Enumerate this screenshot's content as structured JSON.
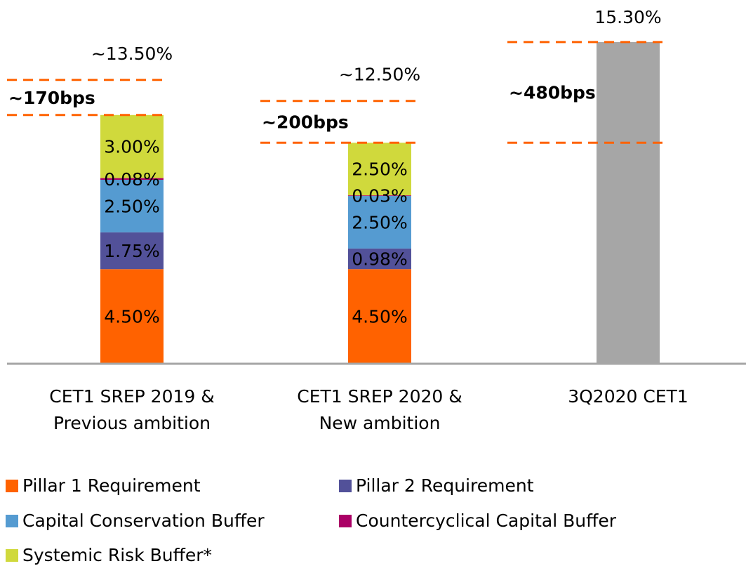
{
  "chart_data": {
    "type": "stacked_bar",
    "categories": [
      [
        "CET1 SREP 2019 &",
        "Previous ambition"
      ],
      [
        "CET1 SREP 2020 &",
        "New ambition"
      ],
      [
        "3Q2020 CET1"
      ]
    ],
    "ylim": [
      0,
      17.3
    ],
    "series": [
      {
        "name": "Pillar 1 Requirement",
        "color": "#ff6200",
        "values": [
          4.5,
          4.5,
          null
        ],
        "value_labels": [
          "4.50%",
          "4.50%",
          null
        ]
      },
      {
        "name": "Pillar 2 Requirement",
        "color": "#525199",
        "values": [
          1.75,
          0.98,
          null
        ],
        "value_labels": [
          "1.75%",
          "0.98%",
          null
        ]
      },
      {
        "name": "Capital Conservation Buffer",
        "color": "#559bd1",
        "values": [
          2.5,
          2.5,
          null
        ],
        "value_labels": [
          "2.50%",
          "2.50%",
          null
        ]
      },
      {
        "name": "Countercyclical Capital Buffer",
        "color": "#ab0066",
        "values": [
          0.08,
          0.03,
          null
        ],
        "value_labels": [
          "0.08%",
          "0.03%",
          null
        ]
      },
      {
        "name": "Systemic Risk Buffer*",
        "color": "#d0d93c",
        "values": [
          3.0,
          2.5,
          null
        ],
        "value_labels": [
          "3.00%",
          "2.50%",
          null
        ]
      }
    ],
    "actual": {
      "color": "#a6a6a6",
      "values": [
        null,
        null,
        15.3
      ],
      "value_labels": [
        null,
        null,
        "15.30%"
      ]
    },
    "targets": [
      13.5,
      12.5,
      null
    ],
    "target_labels": [
      "~13.50%",
      "~12.50%",
      null
    ],
    "gap_labels": [
      "~170bps",
      "~200bps",
      "~480bps"
    ],
    "annotation_color": "#ff6200"
  }
}
